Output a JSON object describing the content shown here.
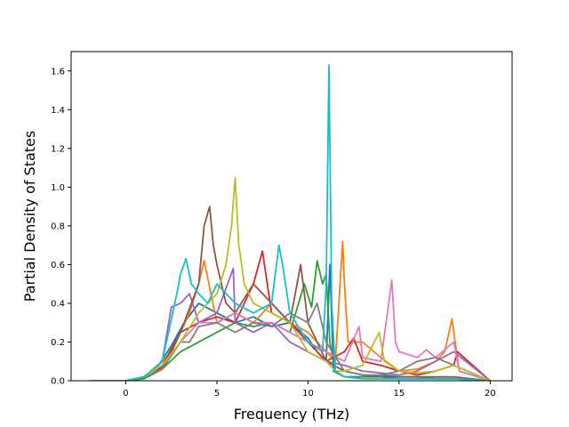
{
  "chart_data": {
    "type": "line",
    "title": "",
    "xlabel": "Frequency (THz)",
    "ylabel": "Partial Density of States",
    "xlim": [
      -3.0,
      21.2
    ],
    "ylim": [
      0.0,
      1.7
    ],
    "xticks": [
      0,
      5,
      10,
      15,
      20
    ],
    "xtick_labels": [
      "0",
      "5",
      "10",
      "15",
      "20"
    ],
    "yticks": [
      0.0,
      0.2,
      0.4,
      0.6,
      0.8,
      1.0,
      1.2,
      1.4,
      1.6
    ],
    "ytick_labels": [
      "0.0",
      "0.2",
      "0.4",
      "0.6",
      "0.8",
      "1.0",
      "1.2",
      "1.4",
      "1.6"
    ],
    "grid": false,
    "legend": "none",
    "series": [
      {
        "color": "#1f77b4",
        "x": [
          -2,
          0,
          1,
          1.8,
          2.5,
          3.2,
          4,
          5,
          6,
          7,
          8,
          9,
          10,
          10.5,
          11,
          11.2,
          11.4,
          12,
          13,
          14,
          15,
          16,
          17,
          18,
          20
        ],
        "y": [
          0,
          0,
          0.02,
          0.08,
          0.18,
          0.3,
          0.4,
          0.35,
          0.3,
          0.33,
          0.28,
          0.3,
          0.22,
          0.15,
          0.1,
          0.6,
          0.05,
          0.02,
          0.02,
          0.03,
          0.02,
          0.02,
          0.01,
          0.01,
          0
        ]
      },
      {
        "color": "#ff7f0e",
        "x": [
          -2,
          0,
          1,
          1.8,
          2.5,
          3,
          3.5,
          4,
          4.3,
          5,
          6,
          7,
          8,
          9,
          10,
          11,
          11.5,
          11.9,
          12,
          12.2,
          13,
          14,
          15,
          16,
          17,
          17.5,
          17.9,
          18,
          18.3,
          20
        ],
        "y": [
          0,
          0,
          0.02,
          0.08,
          0.15,
          0.25,
          0.35,
          0.5,
          0.62,
          0.3,
          0.35,
          0.3,
          0.4,
          0.3,
          0.25,
          0.15,
          0.1,
          0.72,
          0.5,
          0.2,
          0.2,
          0.12,
          0.05,
          0.06,
          0.1,
          0.15,
          0.32,
          0.25,
          0.05,
          0
        ]
      },
      {
        "color": "#2ca02c",
        "x": [
          -2,
          0,
          1,
          2,
          3,
          4,
          5,
          6,
          7,
          8,
          9,
          9.8,
          10.2,
          10.5,
          10.8,
          11,
          11.2,
          11.5,
          12,
          13,
          14,
          15,
          16,
          17,
          18,
          20
        ],
        "y": [
          0,
          0,
          0.01,
          0.06,
          0.15,
          0.2,
          0.25,
          0.3,
          0.28,
          0.3,
          0.25,
          0.5,
          0.38,
          0.62,
          0.5,
          0.55,
          0.2,
          0.05,
          0.02,
          0.02,
          0.02,
          0.01,
          0.01,
          0.01,
          0.01,
          0
        ]
      },
      {
        "color": "#d62728",
        "x": [
          -2,
          0,
          1,
          2,
          2.5,
          3,
          4,
          5,
          6,
          7,
          7.5,
          8,
          9,
          10,
          11,
          12,
          12.5,
          13,
          14,
          15,
          16,
          17,
          18,
          18.2,
          20
        ],
        "y": [
          0,
          0,
          0.02,
          0.07,
          0.15,
          0.25,
          0.3,
          0.33,
          0.3,
          0.5,
          0.67,
          0.35,
          0.3,
          0.2,
          0.1,
          0.15,
          0.22,
          0.1,
          0.08,
          0.05,
          0.03,
          0.05,
          0.08,
          0.15,
          0
        ]
      },
      {
        "color": "#9467bd",
        "x": [
          -2,
          0,
          1,
          2,
          2.5,
          3,
          3.5,
          4,
          5,
          5.9,
          6,
          7,
          8,
          9,
          10,
          11,
          12,
          13,
          14,
          15,
          16,
          17,
          18,
          20
        ],
        "y": [
          0,
          0,
          0.02,
          0.1,
          0.38,
          0.4,
          0.45,
          0.3,
          0.35,
          0.58,
          0.3,
          0.25,
          0.3,
          0.2,
          0.15,
          0.1,
          0.08,
          0.05,
          0.04,
          0.03,
          0.05,
          0.1,
          0.15,
          0
        ]
      },
      {
        "color": "#8c564b",
        "x": [
          -2,
          0,
          1,
          2,
          3,
          4,
          4.3,
          4.6,
          4.8,
          5,
          5.5,
          6,
          7,
          8,
          9,
          9.6,
          10,
          10.5,
          11,
          12,
          13,
          14,
          15,
          16,
          17,
          18,
          20
        ],
        "y": [
          0,
          0,
          0.02,
          0.08,
          0.25,
          0.5,
          0.8,
          0.9,
          0.7,
          0.6,
          0.4,
          0.35,
          0.5,
          0.4,
          0.3,
          0.6,
          0.3,
          0.2,
          0.1,
          0.05,
          0.03,
          0.02,
          0.02,
          0.02,
          0.02,
          0.02,
          0
        ]
      },
      {
        "color": "#e377c2",
        "x": [
          -2,
          0,
          1,
          2,
          3,
          4,
          5,
          6,
          7,
          8,
          9,
          10,
          11,
          12,
          12.8,
          13,
          14,
          14.6,
          14.8,
          15,
          16,
          16.5,
          17,
          18,
          18.3,
          20
        ],
        "y": [
          0,
          0,
          0.02,
          0.08,
          0.2,
          0.3,
          0.3,
          0.35,
          0.3,
          0.3,
          0.25,
          0.2,
          0.15,
          0.1,
          0.28,
          0.12,
          0.1,
          0.52,
          0.2,
          0.15,
          0.12,
          0.16,
          0.12,
          0.2,
          0.05,
          0
        ]
      },
      {
        "color": "#7f7f7f",
        "x": [
          -2,
          0,
          1,
          2,
          3,
          3.5,
          4,
          5,
          6,
          7,
          8,
          9,
          10,
          10.5,
          11,
          12,
          13,
          14,
          15,
          16,
          17,
          18,
          20
        ],
        "y": [
          0,
          0,
          0.02,
          0.06,
          0.2,
          0.2,
          0.28,
          0.3,
          0.25,
          0.3,
          0.28,
          0.35,
          0.3,
          0.4,
          0.2,
          0.05,
          0.03,
          0.03,
          0.05,
          0.1,
          0.12,
          0.08,
          0
        ]
      },
      {
        "color": "#bcbd22",
        "x": [
          -2,
          0,
          1,
          2,
          3,
          4,
          5,
          5.5,
          5.8,
          6,
          6.2,
          6.5,
          7,
          8,
          9,
          10,
          11,
          11.5,
          12,
          13,
          13.9,
          14.2,
          15,
          16,
          17,
          18,
          20
        ],
        "y": [
          0,
          0,
          0.02,
          0.08,
          0.2,
          0.35,
          0.45,
          0.6,
          0.8,
          1.05,
          0.7,
          0.5,
          0.4,
          0.35,
          0.3,
          0.15,
          0.1,
          0.05,
          0.05,
          0.08,
          0.25,
          0.1,
          0.05,
          0.04,
          0.05,
          0.08,
          0
        ]
      },
      {
        "color": "#17becf",
        "x": [
          -2,
          0,
          1,
          2,
          2.8,
          3,
          3.3,
          3.6,
          4,
          4.5,
          5,
          6,
          7,
          8,
          8.4,
          8.6,
          9,
          10,
          10.8,
          11,
          11.15,
          11.3,
          11.5,
          12,
          13,
          14,
          15,
          16,
          17,
          18,
          20
        ],
        "y": [
          0,
          0,
          0.02,
          0.1,
          0.45,
          0.55,
          0.63,
          0.5,
          0.45,
          0.4,
          0.5,
          0.4,
          0.35,
          0.4,
          0.7,
          0.6,
          0.35,
          0.2,
          0.15,
          0.5,
          1.63,
          0.4,
          0.05,
          0.02,
          0.01,
          0.01,
          0.01,
          0.01,
          0.01,
          0.01,
          0
        ]
      }
    ]
  }
}
